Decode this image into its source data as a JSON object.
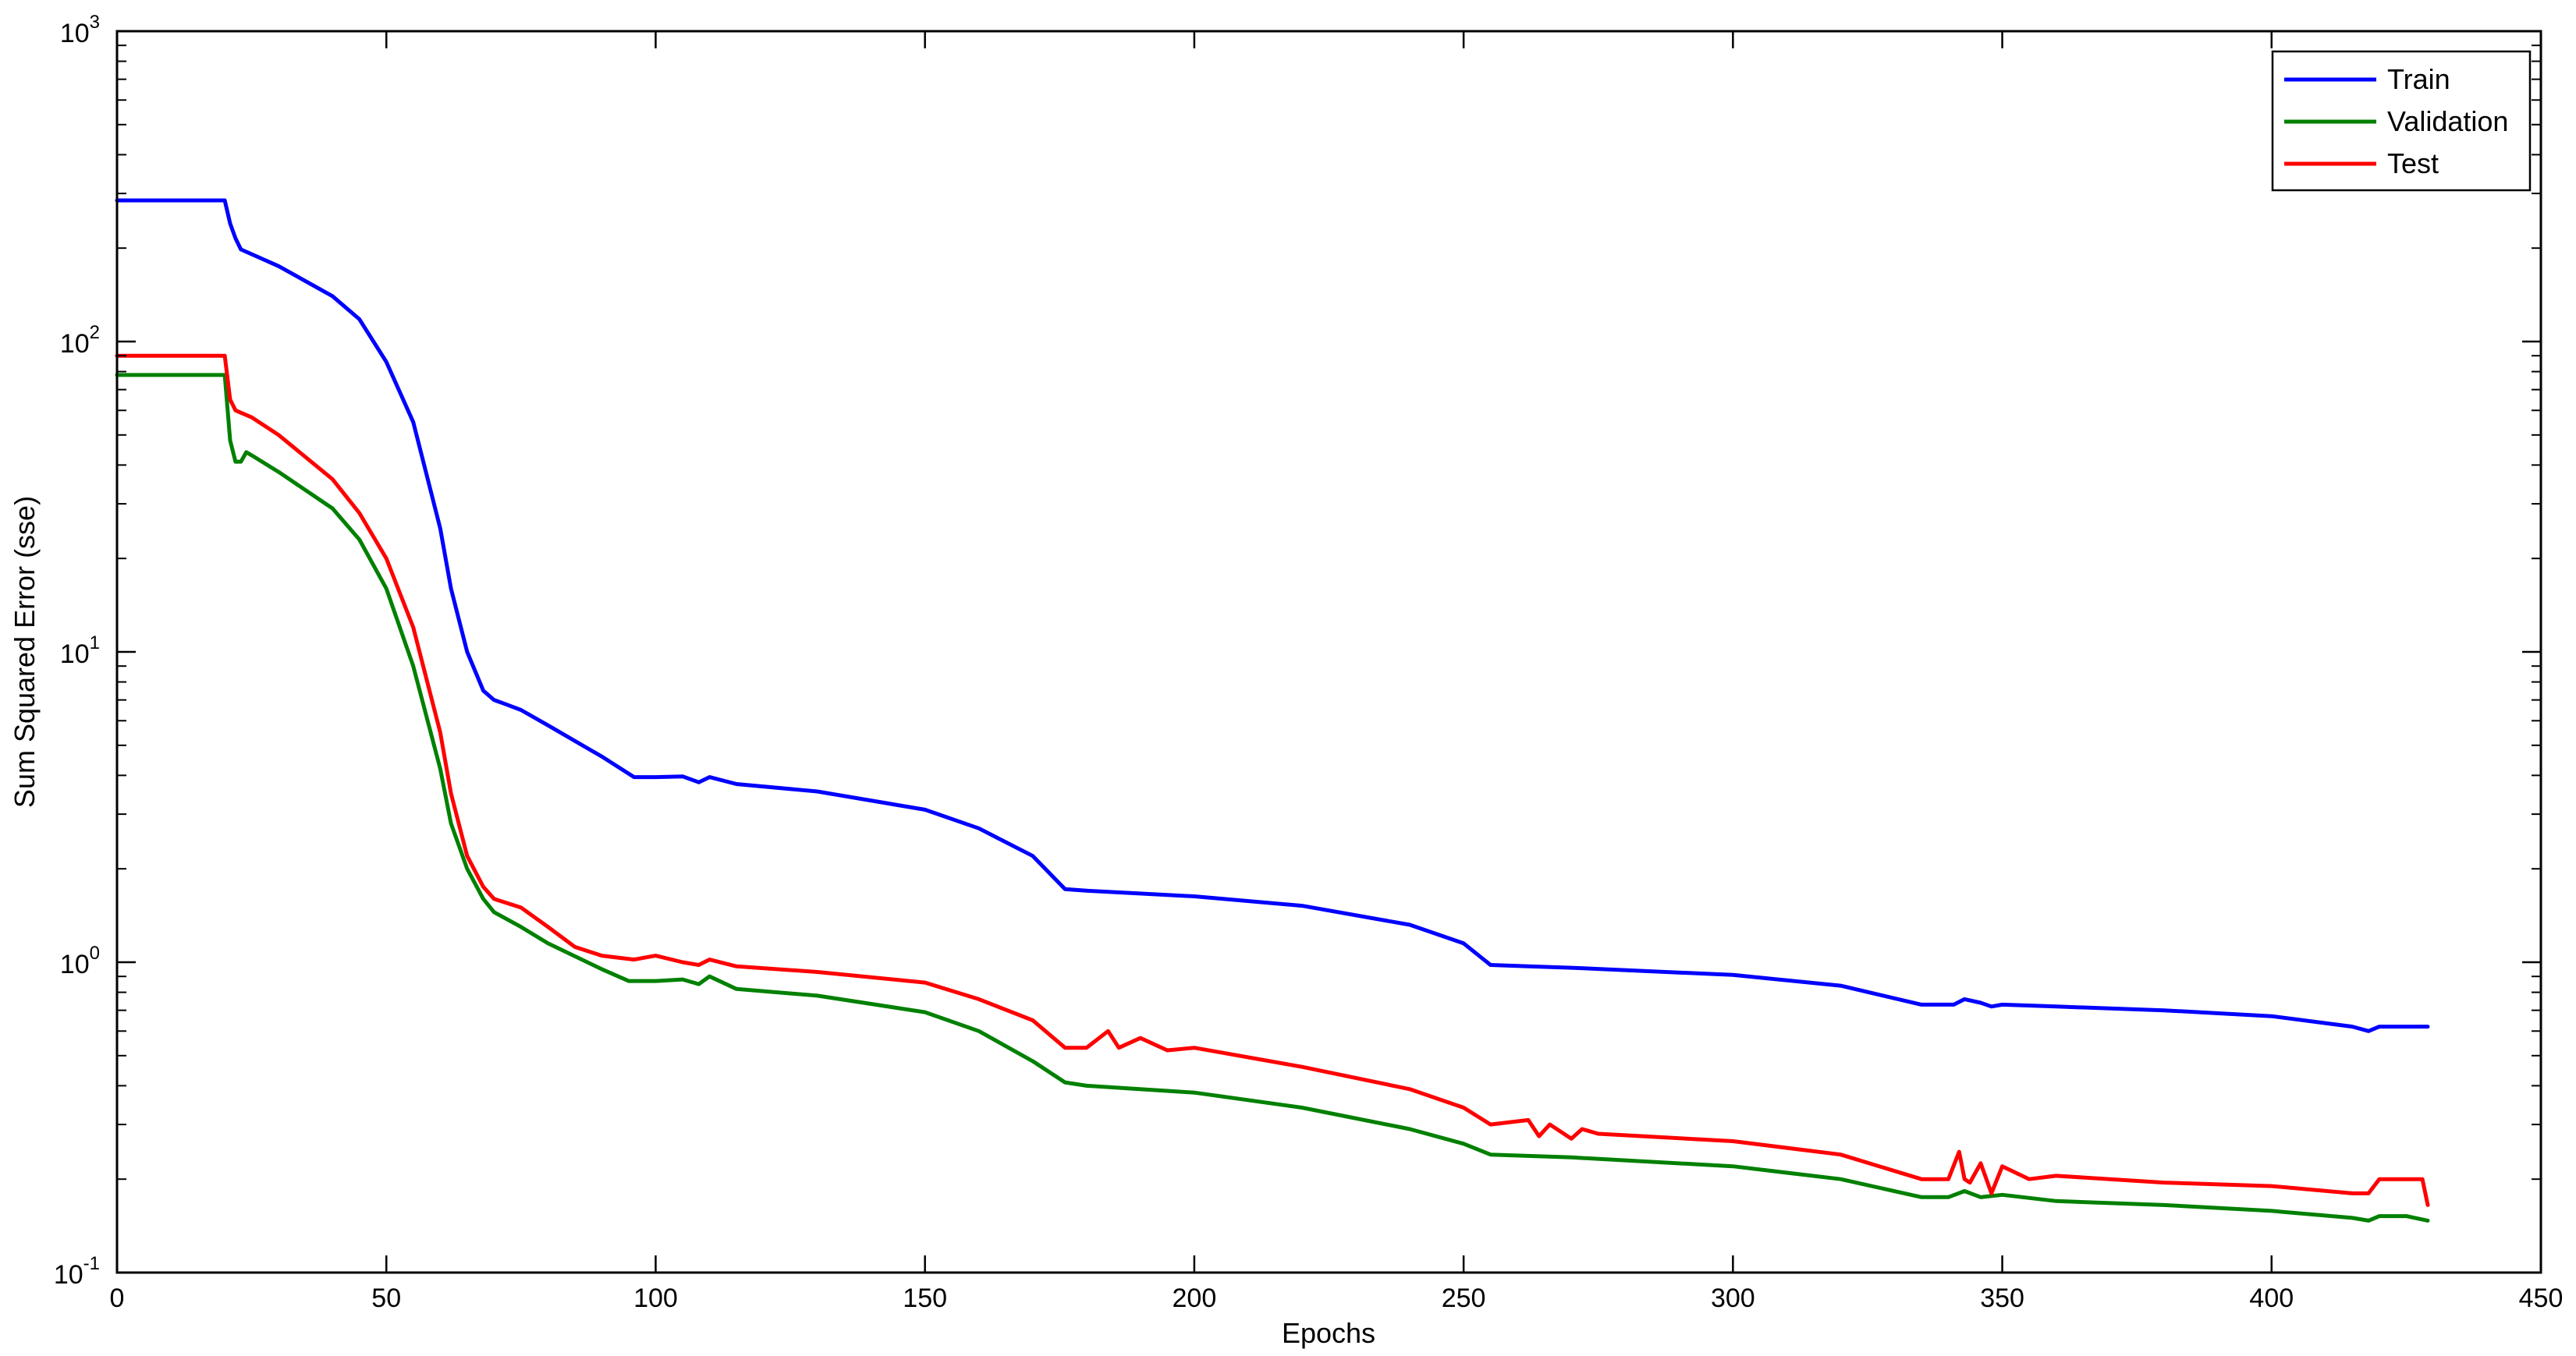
{
  "chart_data": {
    "type": "line",
    "title": "",
    "xlabel": "Epochs",
    "ylabel": "Sum Squared Error (sse)",
    "xlim": [
      0,
      450
    ],
    "ylim": [
      0.1,
      1000
    ],
    "yscale": "log",
    "xticks": [
      0,
      50,
      100,
      150,
      200,
      250,
      300,
      350,
      400,
      450
    ],
    "yticks": [
      {
        "value": 0.1,
        "base": "10",
        "exp": "-1"
      },
      {
        "value": 1,
        "base": "10",
        "exp": "0"
      },
      {
        "value": 10,
        "base": "10",
        "exp": "1"
      },
      {
        "value": 100,
        "base": "10",
        "exp": "2"
      },
      {
        "value": 1000,
        "base": "10",
        "exp": "3"
      }
    ],
    "grid": false,
    "legend_position": "top-right",
    "series": [
      {
        "name": "Train",
        "color": "#0000ff",
        "x": [
          0,
          20,
          21,
          22,
          23,
          30,
          40,
          45,
          50,
          55,
          60,
          62,
          65,
          68,
          70,
          72,
          75,
          80,
          90,
          96,
          100,
          105,
          108,
          110,
          115,
          130,
          150,
          160,
          170,
          176,
          180,
          200,
          220,
          240,
          250,
          255,
          262,
          270,
          300,
          320,
          335,
          341,
          343,
          346,
          348,
          350,
          360,
          380,
          400,
          415,
          418,
          420,
          425,
          429
        ],
        "y": [
          285,
          285,
          240,
          215,
          198,
          175,
          140,
          118,
          86,
          55,
          25,
          16,
          10,
          7.5,
          7.0,
          6.8,
          6.5,
          5.8,
          4.6,
          3.95,
          3.95,
          3.97,
          3.8,
          3.95,
          3.75,
          3.55,
          3.1,
          2.7,
          2.2,
          1.72,
          1.7,
          1.63,
          1.52,
          1.32,
          1.15,
          0.98,
          0.97,
          0.96,
          0.91,
          0.84,
          0.73,
          0.73,
          0.76,
          0.74,
          0.72,
          0.73,
          0.72,
          0.7,
          0.67,
          0.62,
          0.6,
          0.62,
          0.62,
          0.62
        ]
      },
      {
        "name": "Validation",
        "color": "#008000",
        "x": [
          0,
          20,
          21,
          22,
          23,
          24,
          25,
          30,
          40,
          45,
          50,
          55,
          60,
          62,
          65,
          68,
          70,
          75,
          80,
          90,
          95,
          100,
          105,
          108,
          110,
          115,
          130,
          150,
          160,
          170,
          176,
          180,
          200,
          220,
          240,
          250,
          255,
          270,
          300,
          320,
          335,
          340,
          343,
          346,
          350,
          360,
          380,
          400,
          415,
          418,
          420,
          425,
          429
        ],
        "y": [
          78,
          78,
          48,
          41,
          41,
          44,
          43,
          38,
          29,
          23,
          16,
          9,
          4.2,
          2.8,
          2.0,
          1.6,
          1.45,
          1.3,
          1.15,
          0.95,
          0.87,
          0.87,
          0.88,
          0.85,
          0.9,
          0.82,
          0.78,
          0.69,
          0.6,
          0.48,
          0.41,
          0.4,
          0.38,
          0.34,
          0.29,
          0.26,
          0.24,
          0.235,
          0.22,
          0.2,
          0.175,
          0.175,
          0.183,
          0.175,
          0.178,
          0.17,
          0.165,
          0.158,
          0.15,
          0.147,
          0.152,
          0.152,
          0.147
        ]
      },
      {
        "name": "Test",
        "color": "#ff0000",
        "x": [
          0,
          20,
          21,
          22,
          25,
          30,
          40,
          45,
          50,
          55,
          60,
          62,
          65,
          68,
          70,
          75,
          80,
          85,
          90,
          96,
          100,
          105,
          108,
          110,
          115,
          130,
          150,
          160,
          170,
          176,
          180,
          184,
          186,
          190,
          195,
          200,
          220,
          240,
          250,
          255,
          262,
          264,
          266,
          270,
          272,
          275,
          300,
          320,
          335,
          340,
          342,
          343,
          344,
          346,
          348,
          350,
          355,
          360,
          380,
          400,
          415,
          418,
          420,
          425,
          428,
          429
        ],
        "y": [
          90,
          90,
          65,
          60,
          57,
          50,
          36,
          28,
          20,
          12,
          5.5,
          3.5,
          2.2,
          1.75,
          1.6,
          1.5,
          1.3,
          1.12,
          1.05,
          1.02,
          1.05,
          1.0,
          0.98,
          1.02,
          0.97,
          0.93,
          0.86,
          0.76,
          0.65,
          0.53,
          0.53,
          0.6,
          0.53,
          0.57,
          0.52,
          0.53,
          0.46,
          0.39,
          0.34,
          0.3,
          0.31,
          0.275,
          0.3,
          0.27,
          0.29,
          0.28,
          0.265,
          0.24,
          0.2,
          0.2,
          0.245,
          0.2,
          0.195,
          0.225,
          0.18,
          0.22,
          0.2,
          0.205,
          0.195,
          0.19,
          0.18,
          0.18,
          0.2,
          0.2,
          0.2,
          0.165
        ]
      }
    ]
  }
}
